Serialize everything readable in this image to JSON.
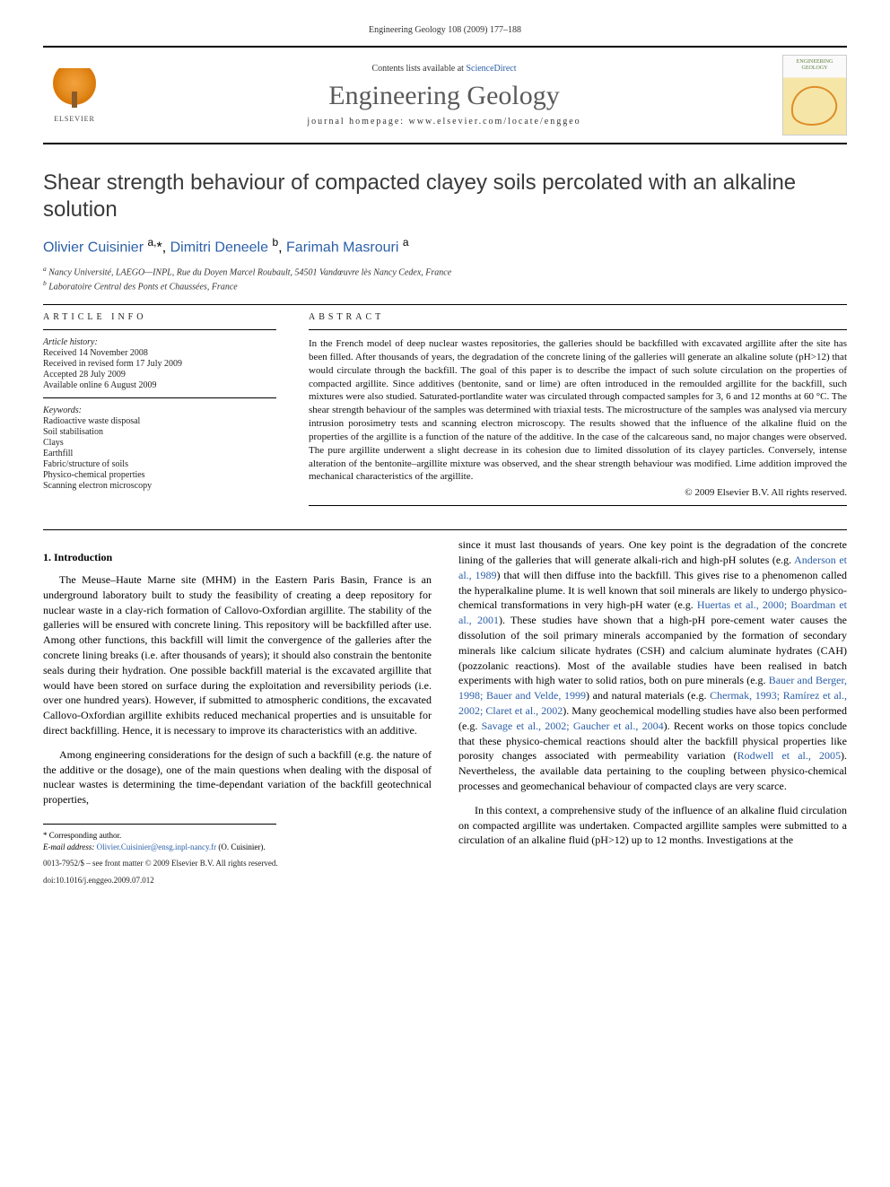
{
  "running_head": "Engineering Geology 108 (2009) 177–188",
  "banner": {
    "contents_prefix": "Contents lists available at ",
    "contents_link": "ScienceDirect",
    "journal_name": "Engineering Geology",
    "homepage_prefix": "journal homepage: ",
    "homepage_url": "www.elsevier.com/locate/enggeo",
    "publisher_label": "ELSEVIER",
    "cover_text": "ENGINEERING GEOLOGY"
  },
  "title": "Shear strength behaviour of compacted clayey soils percolated with an alkaline solution",
  "authors_html": "Olivier Cuisinier <sup>a,</sup>*, Dimitri Deneele <sup>b</sup>, Farimah Masrouri <sup>a</sup>",
  "affiliations": {
    "a": "Nancy Université, LAEGO—INPL, Rue du Doyen Marcel Roubault, 54501 Vandœuvre lès Nancy Cedex, France",
    "b": "Laboratoire Central des Ponts et Chaussées, France"
  },
  "info_heading": "article info",
  "history": {
    "head": "Article history:",
    "received": "Received 14 November 2008",
    "revised": "Received in revised form 17 July 2009",
    "accepted": "Accepted 28 July 2009",
    "online": "Available online 6 August 2009"
  },
  "keywords": {
    "head": "Keywords:",
    "items": [
      "Radioactive waste disposal",
      "Soil stabilisation",
      "Clays",
      "Earthfill",
      "Fabric/structure of soils",
      "Physico-chemical properties",
      "Scanning electron microscopy"
    ]
  },
  "abstract_heading": "abstract",
  "abstract": "In the French model of deep nuclear wastes repositories, the galleries should be backfilled with excavated argillite after the site has been filled. After thousands of years, the degradation of the concrete lining of the galleries will generate an alkaline solute (pH>12) that would circulate through the backfill. The goal of this paper is to describe the impact of such solute circulation on the properties of compacted argillite. Since additives (bentonite, sand or lime) are often introduced in the remoulded argillite for the backfill, such mixtures were also studied. Saturated-portlandite water was circulated through compacted samples for 3, 6 and 12 months at 60 °C. The shear strength behaviour of the samples was determined with triaxial tests. The microstructure of the samples was analysed via mercury intrusion porosimetry tests and scanning electron microscopy. The results showed that the influence of the alkaline fluid on the properties of the argillite is a function of the nature of the additive. In the case of the calcareous sand, no major changes were observed. The pure argillite underwent a slight decrease in its cohesion due to limited dissolution of its clayey particles. Conversely, intense alteration of the bentonite–argillite mixture was observed, and the shear strength behaviour was modified. Lime addition improved the mechanical characteristics of the argillite.",
  "copyright": "© 2009 Elsevier B.V. All rights reserved.",
  "section1_heading": "1. Introduction",
  "p1": "The Meuse–Haute Marne site (MHM) in the Eastern Paris Basin, France is an underground laboratory built to study the feasibility of creating a deep repository for nuclear waste in a clay-rich formation of Callovo-Oxfordian argillite. The stability of the galleries will be ensured with concrete lining. This repository will be backfilled after use. Among other functions, this backfill will limit the convergence of the galleries after the concrete lining breaks (i.e. after thousands of years); it should also constrain the bentonite seals during their hydration. One possible backfill material is the excavated argillite that would have been stored on surface during the exploitation and reversibility periods (i.e. over one hundred years). However, if submitted to atmospheric conditions, the excavated Callovo-Oxfordian argillite exhibits reduced mechanical properties and is unsuitable for direct backfilling. Hence, it is necessary to improve its characteristics with an additive.",
  "p2": "Among engineering considerations for the design of such a backfill (e.g. the nature of the additive or the dosage), one of the main questions when dealing with the disposal of nuclear wastes is determining the time-dependant variation of the backfill geotechnical properties,",
  "p3_pre": "since it must last thousands of years. One key point is the degradation of the concrete lining of the galleries that will generate alkali-rich and high-pH solutes (e.g. ",
  "p3_r1": "Anderson et al., 1989",
  "p3_mid1": ") that will then diffuse into the backfill. This gives rise to a phenomenon called the hyperalkaline plume. It is well known that soil minerals are likely to undergo physico-chemical transformations in very high-pH water (e.g. ",
  "p3_r2": "Huertas et al., 2000; Boardman et al., 2001",
  "p3_mid2": "). These studies have shown that a high-pH pore-cement water causes the dissolution of the soil primary minerals accompanied by the formation of secondary minerals like calcium silicate hydrates (CSH) and calcium aluminate hydrates (CAH) (pozzolanic reactions). Most of the available studies have been realised in batch experiments with high water to solid ratios, both on pure minerals (e.g. ",
  "p3_r3": "Bauer and Berger, 1998; Bauer and Velde, 1999",
  "p3_mid3": ") and natural materials (e.g. ",
  "p3_r4": "Chermak, 1993; Ramírez et al., 2002; Claret et al., 2002",
  "p3_mid4": "). Many geochemical modelling studies have also been performed (e.g. ",
  "p3_r5": "Savage et al., 2002; Gaucher et al., 2004",
  "p3_mid5": "). Recent works on those topics conclude that these physico-chemical reactions should alter the backfill physical properties like porosity changes associated with permeability variation (",
  "p3_r6": "Rodwell et al., 2005",
  "p3_end": "). Nevertheless, the available data pertaining to the coupling between physico-chemical processes and geomechanical behaviour of compacted clays are very scarce.",
  "p4": "In this context, a comprehensive study of the influence of an alkaline fluid circulation on compacted argillite was undertaken. Compacted argillite samples were submitted to a circulation of an alkaline fluid (pH>12) up to 12 months. Investigations at the",
  "footnote_corresponding": "* Corresponding author.",
  "footnote_email_label": "E-mail address:",
  "footnote_email": "Olivier.Cuisinier@ensg.inpl-nancy.fr",
  "footnote_email_suffix": " (O. Cuisinier).",
  "bottom_line": "0013-7952/$ – see front matter © 2009 Elsevier B.V. All rights reserved.",
  "doi": "doi:10.1016/j.enggeo.2009.07.012",
  "colors": {
    "link": "#2b5fa8",
    "heading": "#3a3a3a",
    "brand_orange": "#e38b1e"
  }
}
